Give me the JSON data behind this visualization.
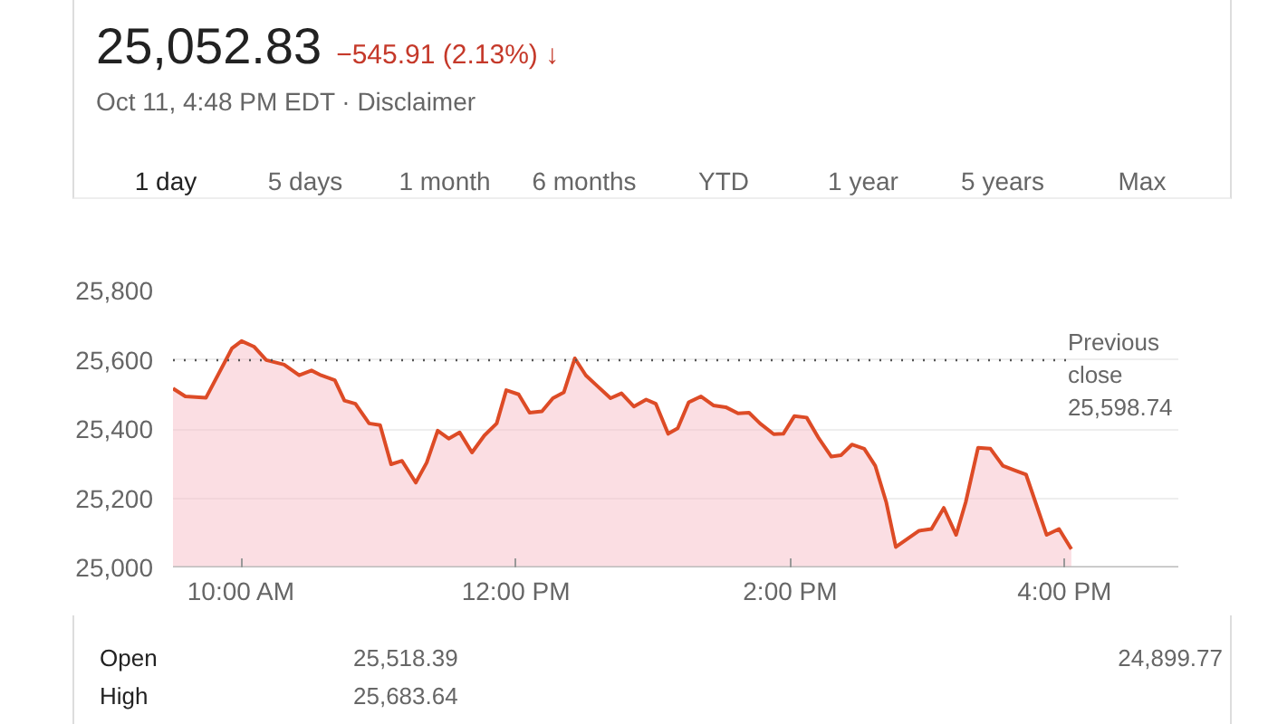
{
  "chart_data": {
    "type": "area",
    "title": "25,052.83",
    "subtitle": "−545.91 (2.13%) ↓",
    "annotations": [
      "Oct 11, 4:48 PM EDT · Disclaimer",
      "1 day",
      "5 days",
      "1 month",
      "6 months",
      "YTD",
      "1 year",
      "5 years",
      "Max",
      "Open",
      "25,518.39",
      "24,899.77",
      "High",
      "25,683.64"
    ],
    "x": [
      9.5,
      9.59,
      9.74,
      9.93,
      10.0,
      10.09,
      10.18,
      10.31,
      10.42,
      10.51,
      10.58,
      10.68,
      10.75,
      10.83,
      10.93,
      11.01,
      11.09,
      11.17,
      11.27,
      11.35,
      11.43,
      11.51,
      11.59,
      11.68,
      11.77,
      11.86,
      11.93,
      12.02,
      12.1,
      12.19,
      12.27,
      12.35,
      12.43,
      12.51,
      12.58,
      12.69,
      12.77,
      12.86,
      12.95,
      13.02,
      13.11,
      13.18,
      13.26,
      13.35,
      13.44,
      13.53,
      13.62,
      13.7,
      13.78,
      13.88,
      13.95,
      14.03,
      14.12,
      14.21,
      14.3,
      14.37,
      14.45,
      14.54,
      14.62,
      14.7,
      14.77,
      14.94,
      15.03,
      15.12,
      15.21,
      15.28,
      15.37,
      15.46,
      15.55,
      15.64,
      15.72,
      15.87,
      15.96,
      16.05
    ],
    "series": [
      {
        "color": "#dd4b26",
        "values": [
          25517,
          25494,
          25490,
          25633,
          25654,
          25638,
          25599,
          25586,
          25555,
          25569,
          25555,
          25541,
          25482,
          25473,
          25416,
          25411,
          25298,
          25308,
          25245,
          25303,
          25395,
          25372,
          25390,
          25332,
          25381,
          25416,
          25512,
          25500,
          25447,
          25451,
          25489,
          25506,
          25604,
          25555,
          25529,
          25489,
          25503,
          25465,
          25485,
          25473,
          25386,
          25402,
          25477,
          25494,
          25468,
          25463,
          25445,
          25447,
          25416,
          25385,
          25386,
          25437,
          25433,
          25372,
          25320,
          25324,
          25355,
          25343,
          25294,
          25189,
          25059,
          25106,
          25111,
          25172,
          25094,
          25189,
          25346,
          25343,
          25294,
          25280,
          25268,
          25094,
          25111,
          25053
        ]
      }
    ],
    "xlim": [
      9.5,
      16.83
    ],
    "ylim": [
      25000,
      25800
    ],
    "xticks": [
      {
        "value": 10,
        "label": "10:00 AM"
      },
      {
        "value": 12,
        "label": "12:00 PM"
      },
      {
        "value": 14,
        "label": "2:00 PM"
      },
      {
        "value": 16,
        "label": "4:00 PM"
      }
    ],
    "yticks": [
      {
        "value": 25000,
        "label": "25,000"
      },
      {
        "value": 25200,
        "label": "25,200"
      },
      {
        "value": 25400,
        "label": "25,400"
      },
      {
        "value": 25600,
        "label": "25,600"
      },
      {
        "value": 25800,
        "label": "25,800"
      }
    ],
    "grid": "y",
    "ref_lines": [
      {
        "axis": "y",
        "value": 25598.74,
        "label": "Previous\nclose\n25,598.74",
        "color": "#555555",
        "line_style": "dotted"
      }
    ]
  }
}
